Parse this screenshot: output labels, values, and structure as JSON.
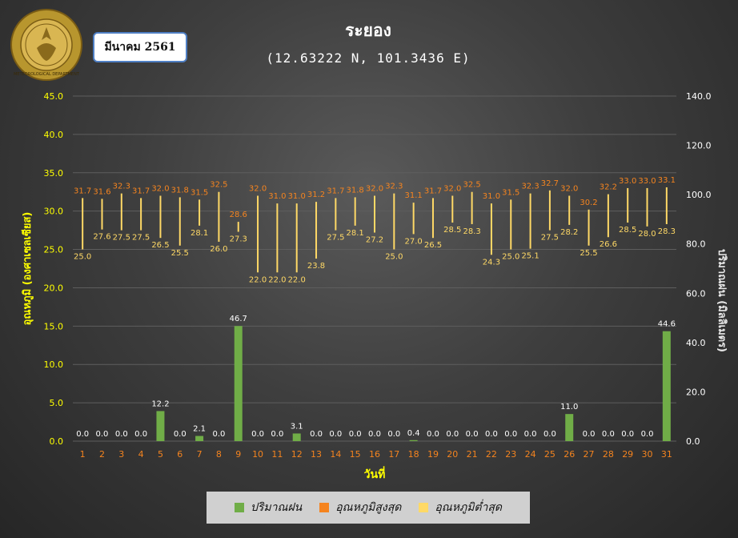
{
  "month_label": "มีนาคม 2561",
  "title": "ระยอง",
  "subtitle": "(12.63222 N, 101.3436 E)",
  "logo": {
    "icon": "tmd-seal-icon",
    "text": "METEOROLOGICAL DEPARTMENT"
  },
  "legend": [
    {
      "label": "ปริมาณฝน",
      "color": "#70ad47"
    },
    {
      "label": "อุณหภูมิสูงสุด",
      "color": "#f5841f"
    },
    {
      "label": "อุณหภูมิต่ำสุด",
      "color": "#ffd966"
    }
  ],
  "chart_data": {
    "type": "bar",
    "xlabel": "วันที่",
    "ylabel_left": "อุณหภูมิ (องศาเซลเซียส)",
    "ylabel_right": "ปริมาณฝน (มิลลิเมตร)",
    "ylim_left": [
      0,
      45
    ],
    "ylim_right": [
      0,
      140
    ],
    "yticks_left": [
      "0.0",
      "5.0",
      "10.0",
      "15.0",
      "20.0",
      "25.0",
      "30.0",
      "35.0",
      "40.0",
      "45.0"
    ],
    "yticks_right": [
      "0.0",
      "20.0",
      "40.0",
      "60.0",
      "80.0",
      "100.0",
      "120.0",
      "140.0"
    ],
    "categories": [
      "1",
      "2",
      "3",
      "4",
      "5",
      "6",
      "7",
      "8",
      "9",
      "10",
      "11",
      "12",
      "13",
      "14",
      "15",
      "16",
      "17",
      "18",
      "19",
      "20",
      "21",
      "22",
      "23",
      "24",
      "25",
      "26",
      "27",
      "28",
      "29",
      "30",
      "31"
    ],
    "series": [
      {
        "name": "ปริมาณฝน",
        "axis": "right",
        "color": "#70ad47",
        "values": [
          0,
          0,
          0,
          0,
          12.2,
          0,
          2.1,
          0,
          46.7,
          0,
          0,
          3.1,
          0,
          0,
          0,
          0,
          0,
          0.4,
          0,
          0,
          0,
          0,
          0,
          0,
          0,
          11.0,
          0,
          0,
          0,
          0,
          44.6
        ],
        "labels": [
          "0.0",
          "0.0",
          "0.0",
          "0.0",
          "12.2",
          "0.0",
          "2.1",
          "0.0",
          "46.7",
          "0.0",
          "0.0",
          "3.1",
          "0.0",
          "0.0",
          "0.0",
          "0.0",
          "0.0",
          "0.4",
          "0.0",
          "0.0",
          "0.0",
          "0.0",
          "0.0",
          "0.0",
          "0.0",
          "11.0",
          "0.0",
          "0.0",
          "0.0",
          "0.0",
          "44.6"
        ]
      },
      {
        "name": "อุณหภูมิสูงสุด",
        "axis": "left",
        "color": "#f5841f",
        "values": [
          31.7,
          31.6,
          32.3,
          31.7,
          32.0,
          31.8,
          31.5,
          32.5,
          28.6,
          32.0,
          31.0,
          31.0,
          31.2,
          31.7,
          31.8,
          32.0,
          32.3,
          31.1,
          31.7,
          32.0,
          32.5,
          31.0,
          31.5,
          32.3,
          32.7,
          32.0,
          30.2,
          32.2,
          33.0,
          33.0,
          33.1
        ],
        "labels": [
          "31.7",
          "31.6",
          "32.3",
          "31.7",
          "32.0",
          "31.8",
          "31.5",
          "32.5",
          "28.6",
          "32.0",
          "31.0",
          "31.0",
          "31.2",
          "31.7",
          "31.8",
          "32.0",
          "32.3",
          "31.1",
          "31.7",
          "32.0",
          "32.5",
          "31.0",
          "31.5",
          "32.3",
          "32.7",
          "32.0",
          "30.2",
          "32.2",
          "33.0",
          "33.0",
          "33.1"
        ]
      },
      {
        "name": "อุณหภูมิต่ำสุด",
        "axis": "left",
        "color": "#ffd966",
        "values": [
          25.0,
          27.6,
          27.5,
          27.5,
          26.5,
          25.5,
          28.1,
          26.0,
          27.3,
          22.0,
          22.0,
          22.0,
          23.8,
          27.5,
          28.1,
          27.2,
          25.0,
          27.0,
          26.5,
          28.5,
          28.3,
          24.3,
          25.0,
          25.1,
          27.5,
          28.2,
          25.5,
          26.6,
          28.5,
          28.0,
          28.3
        ],
        "labels": [
          "25.0",
          "27.6",
          "27.5",
          "27.5",
          "26.5",
          "25.5",
          "28.1",
          "26.0",
          "27.3",
          "22.0",
          "22.0",
          "22.0",
          "23.8",
          "27.5",
          "28.1",
          "27.2",
          "25.0",
          "27.0",
          "26.5",
          "28.5",
          "28.3",
          "24.3",
          "25.0",
          "25.1",
          "27.5",
          "28.2",
          "25.5",
          "26.6",
          "28.5",
          "28.0",
          "28.3"
        ]
      }
    ]
  }
}
